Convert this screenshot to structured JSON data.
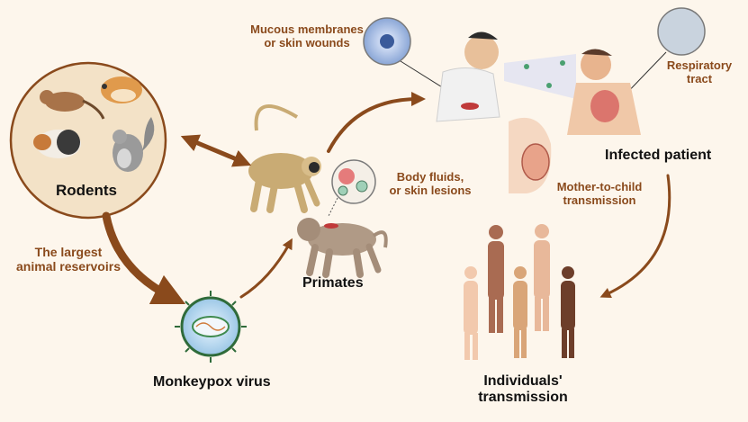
{
  "labels": {
    "rodents": "Rodents",
    "reservoir_line1": "The largest",
    "reservoir_line2": "animal reservoirs",
    "virus": "Monkeypox virus",
    "primates": "Primates",
    "body_fluids_line1": "Body fluids,",
    "body_fluids_line2": "or skin lesions",
    "mucous_line1": "Mucous membranes",
    "mucous_line2": "or skin wounds",
    "respiratory_line1": "Respiratory",
    "respiratory_line2": "tract",
    "infected": "Infected patient",
    "mother_line1": "Mother-to-child",
    "mother_line2": "transmission",
    "individuals_line1": "Individuals'",
    "individuals_line2": "transmission"
  },
  "icons": [
    "rodents-circle-icon",
    "monkey-icon",
    "baboon-icon",
    "virus-icon",
    "cough-scene-icon",
    "fetus-icon",
    "people-group-icon",
    "magnifier-icon"
  ],
  "colors": {
    "background": "#fdf6ec",
    "arrow": "#8a4a1c",
    "accent_text": "#8a4a1c",
    "main_text": "#111111",
    "circle_fill": "#f3e2c7"
  }
}
